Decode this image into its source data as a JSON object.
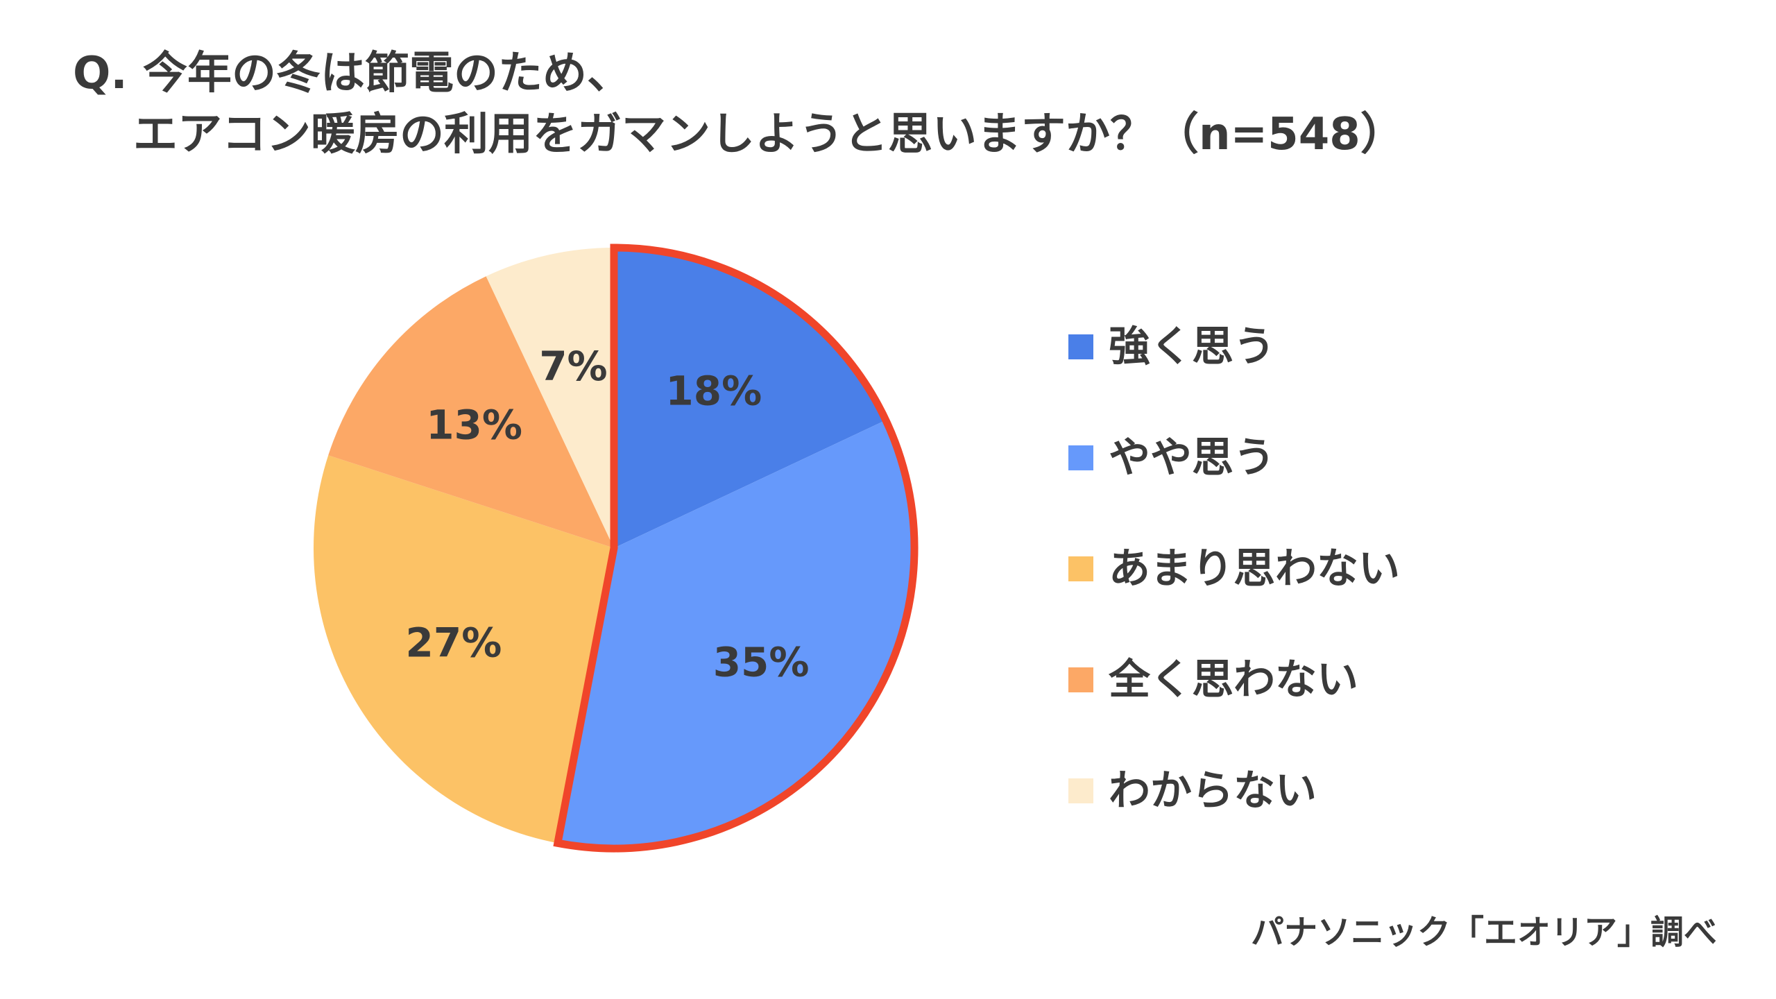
{
  "title": {
    "line1": "Q. 今年の冬は節電のため、",
    "line2": "エアコン暖房の利用をガマンしようと思いますか？（n=548）"
  },
  "chart_data": {
    "type": "pie",
    "title": "Q. 今年の冬は節電のため、エアコン暖房の利用をガマンしようと思いますか？（n=548）",
    "categories": [
      "強く思う",
      "やや思う",
      "あまり思わない",
      "全く思わない",
      "わからない"
    ],
    "values": [
      18,
      35,
      27,
      13,
      7
    ],
    "labels": [
      "18%",
      "35%",
      "27%",
      "13%",
      "7%"
    ],
    "colors": [
      "#4a7fe8",
      "#6699fb",
      "#fcc266",
      "#fca866",
      "#fdebcc"
    ],
    "highlight": {
      "slices": [
        "強く思う",
        "やや思う"
      ],
      "color": "#f0452a"
    },
    "start": "12 o'clock",
    "direction": "clockwise",
    "legend_position": "right"
  },
  "source": "パナソニック「エオリア」調べ"
}
